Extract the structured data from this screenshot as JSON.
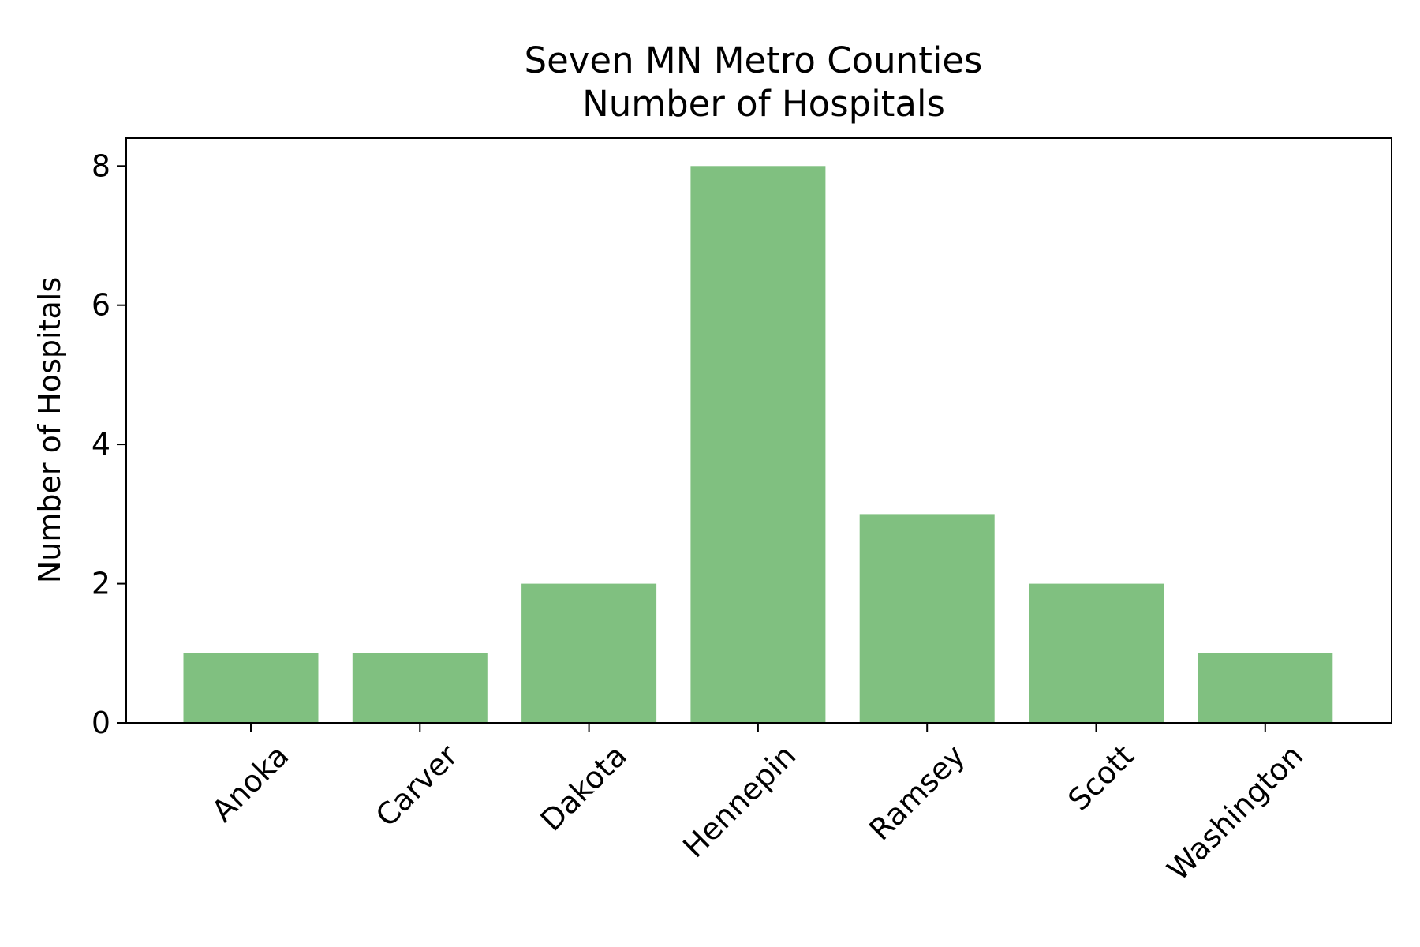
{
  "chart_data": {
    "type": "bar",
    "title_lines": [
      "Seven MN Metro Counties",
      "Number of Hospitals"
    ],
    "xlabel": "",
    "ylabel": "Number of Hospitals",
    "categories": [
      "Anoka",
      "Carver",
      "Dakota",
      "Hennepin",
      "Ramsey",
      "Scott",
      "Washington"
    ],
    "values": [
      1,
      1,
      2,
      8,
      3,
      2,
      1
    ],
    "ylim": [
      0,
      8.4
    ],
    "yticks": [
      0,
      2,
      4,
      6,
      8
    ],
    "ytick_labels": [
      "0",
      "2",
      "4",
      "6",
      "8"
    ],
    "bar_color": "#80c080",
    "grid": false,
    "legend": "none"
  }
}
